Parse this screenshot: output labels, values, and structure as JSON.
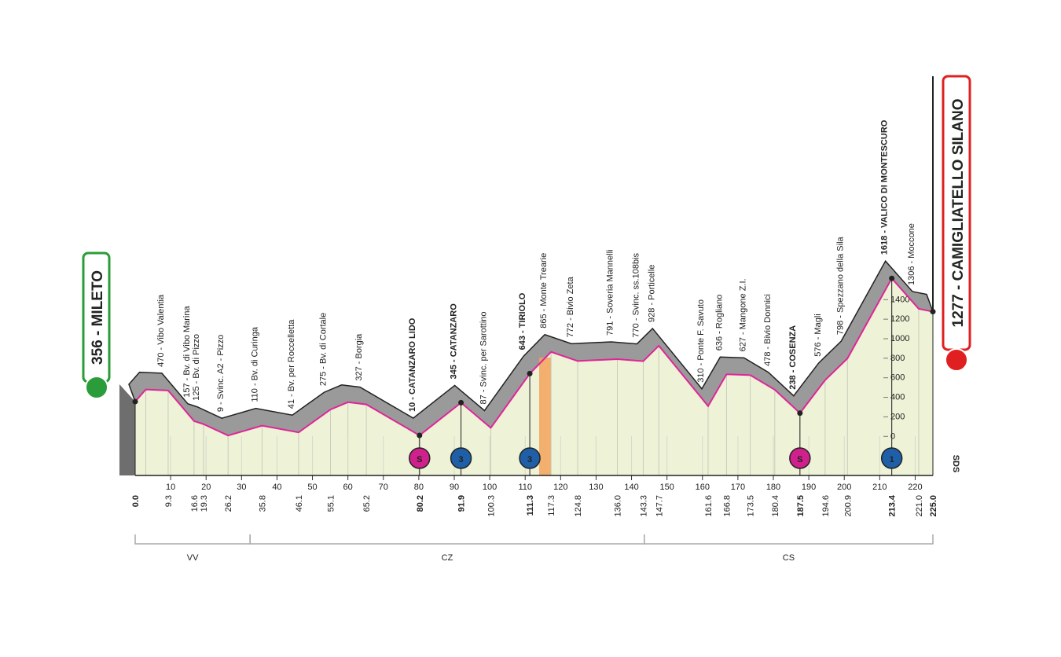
{
  "chart_data": {
    "type": "profile",
    "start": "356 - MILETO",
    "finish": "1277 - CAMIGLIATELLO SILANO",
    "xlim": [
      0,
      225
    ],
    "ylim": [
      -400,
      1700
    ],
    "xticks": [
      10,
      20,
      30,
      40,
      50,
      60,
      70,
      80,
      90,
      100,
      110,
      120,
      130,
      140,
      150,
      160,
      170,
      180,
      190,
      200,
      210,
      220
    ],
    "yticks": [
      0,
      200,
      400,
      600,
      800,
      1000,
      1200,
      1400
    ],
    "km": [
      0,
      3,
      9.3,
      16.6,
      19.3,
      26.2,
      35.8,
      46.1,
      55.1,
      60,
      65.2,
      80.2,
      91.9,
      100.3,
      111.3,
      117.3,
      124.8,
      136,
      143.3,
      147.7,
      161.6,
      166.8,
      173.5,
      180.4,
      187.5,
      194.6,
      200.9,
      213.4,
      221,
      225
    ],
    "km_labels": [
      "0.0",
      null,
      "9.3",
      "16.6",
      "19.3",
      "26.2",
      "35.8",
      "46.1",
      "55.1",
      null,
      "65.2",
      "80.2",
      "91.9",
      "100.3",
      "111.3",
      "117.3",
      "124.8",
      "136.0",
      "143.3",
      "147.7",
      "161.6",
      "166.8",
      "173.5",
      "180.4",
      "187.5",
      "194.6",
      "200.9",
      "213.4",
      "221.0",
      "225.0"
    ],
    "altitude": [
      356,
      480,
      470,
      157,
      125,
      9,
      110,
      41,
      275,
      350,
      327,
      10,
      345,
      87,
      643,
      865,
      772,
      791,
      770,
      928,
      310,
      636,
      627,
      478,
      238,
      576,
      798,
      1618,
      1306,
      1277
    ],
    "places": [
      null,
      null,
      "470 - Vibo Valentia",
      "157 - Bv. di Vibo Marina",
      "125 - Bv. di Pizzo",
      "9 - Svinc. A2 - Pizzo",
      "110 - Bv. di Curinga",
      "41 - Bv. per Roccelletta",
      "275 - Bv. di Cortale",
      null,
      "327 - Borgia",
      "10 - CATANZARO LIDO",
      "345 - CATANZARO",
      "87 - Svinc. per Sarottino",
      "643 - TIRIOLO",
      "865 - Monte Trearie",
      "772 - Bivio Zeta",
      "791 - Soveria Mannelli",
      "770 - Svinc. ss.108bis",
      "928 - Porticelle",
      "310 - Ponte F. Savuto",
      "636 - Rogliano",
      "627 - Mangone Z.I.",
      "478 - Bivio Donnici",
      "238 - COSENZA",
      "576 - Magli",
      "798 - Spezzano della Sila",
      "1618 - VALICO DI MONTESCURO",
      "1306 - Moccone",
      null
    ],
    "major": [
      true,
      false,
      false,
      false,
      false,
      false,
      false,
      false,
      false,
      false,
      false,
      true,
      true,
      false,
      true,
      false,
      false,
      false,
      false,
      false,
      false,
      false,
      false,
      false,
      true,
      false,
      false,
      true,
      false,
      true
    ],
    "icons": [
      {
        "label": "S",
        "km": 80.2,
        "color": "#d0208c"
      },
      {
        "label": "3",
        "km": 91.9,
        "color": "#1f5fa8"
      },
      {
        "label": "3",
        "km": 111.3,
        "color": "#1f5fa8"
      },
      {
        "label": "S",
        "km": 187.5,
        "color": "#d0208c"
      },
      {
        "label": "1",
        "km": 213.4,
        "color": "#1f5fa8"
      }
    ],
    "regions": [
      {
        "label": "VV",
        "from": 0,
        "to": 32.4
      },
      {
        "label": "CZ",
        "from": 32.4,
        "to": 143.6
      },
      {
        "label": "CS",
        "from": 143.6,
        "to": 225
      }
    ],
    "brand": "SDS",
    "line_color": "#e0259a",
    "fill_color": "#eef2d6",
    "relief_color": "#9a9a9a"
  }
}
